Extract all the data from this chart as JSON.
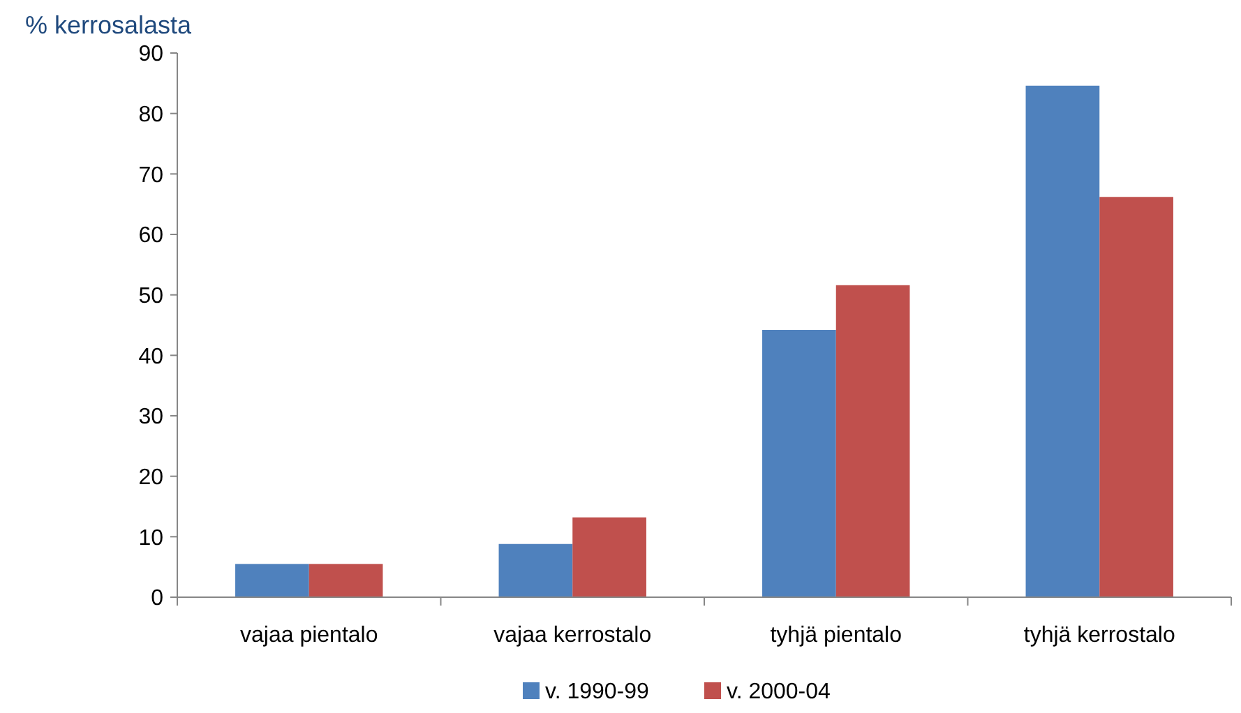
{
  "chart_data": {
    "type": "bar",
    "ylabel": "% kerrosalasta",
    "categories": [
      "vajaa pientalo",
      "vajaa kerrostalo",
      "tyhjä pientalo",
      "tyhjä kerrostalo"
    ],
    "series": [
      {
        "name": "v. 1990-99",
        "color": "#4f81bd",
        "values": [
          5.5,
          8.8,
          44.2,
          84.6
        ]
      },
      {
        "name": "v. 2000-04",
        "color": "#c0504d",
        "values": [
          5.5,
          13.2,
          51.6,
          66.2
        ]
      }
    ],
    "ylim": [
      0,
      90
    ],
    "yticks": [
      0,
      10,
      20,
      30,
      40,
      50,
      60,
      70,
      80,
      90
    ],
    "grid": false,
    "legend": "bottom"
  }
}
